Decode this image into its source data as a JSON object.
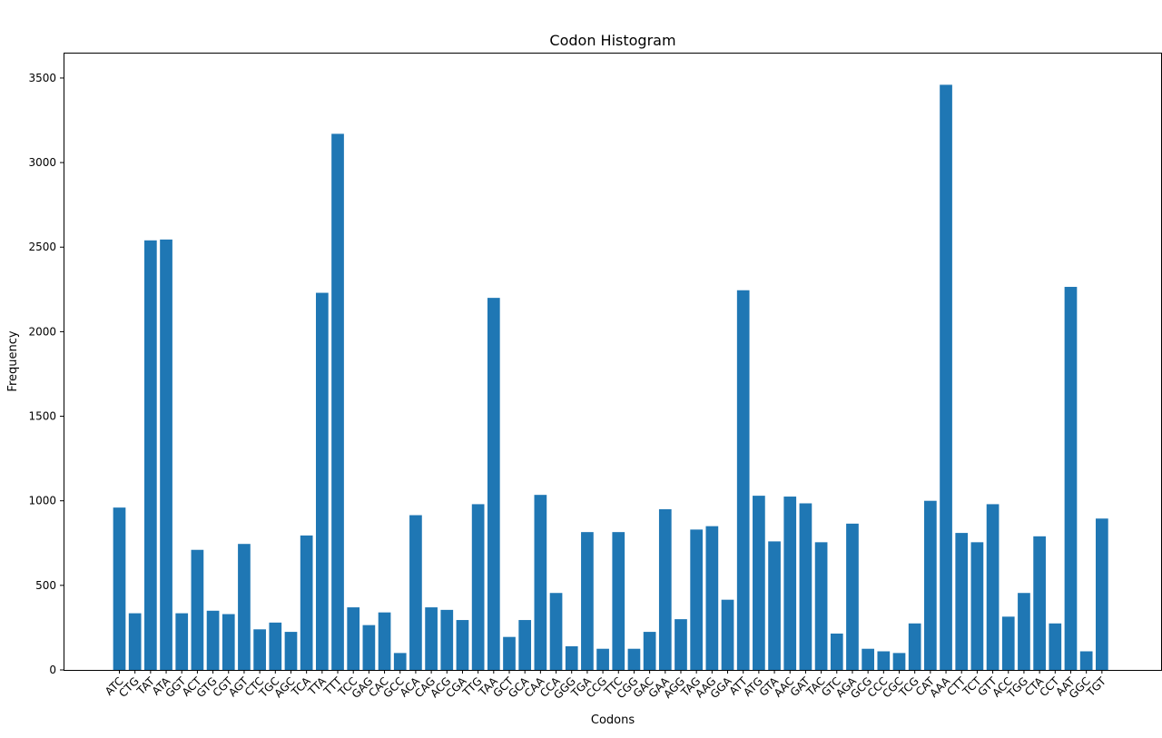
{
  "chart_data": {
    "type": "bar",
    "title": "Codon Histogram",
    "xlabel": "Codons",
    "ylabel": "Frequency",
    "ylim": [
      0,
      3650
    ],
    "yticks": [
      0,
      500,
      1000,
      1500,
      2000,
      2500,
      3000,
      3500
    ],
    "bar_color": "#1f77b4",
    "grid": false,
    "categories": [
      "ATC",
      "CTG",
      "TAT",
      "ATA",
      "GGT",
      "ACT",
      "GTG",
      "CGT",
      "AGT",
      "CTC",
      "TGC",
      "AGC",
      "TCA",
      "TTA",
      "TTT",
      "TCC",
      "GAG",
      "CAC",
      "GCC",
      "ACA",
      "CAG",
      "ACG",
      "CGA",
      "TTG",
      "TAA",
      "GCT",
      "GCA",
      "CAA",
      "CCA",
      "GGG",
      "TGA",
      "CCG",
      "TTC",
      "CGG",
      "GAC",
      "GAA",
      "AGG",
      "TAG",
      "AAG",
      "GGA",
      "ATT",
      "ATG",
      "GTA",
      "AAC",
      "GAT",
      "TAC",
      "GTC",
      "AGA",
      "GCG",
      "CCC",
      "CGC",
      "TCG",
      "CAT",
      "AAA",
      "CTT",
      "TCT",
      "GTT",
      "ACC",
      "TGG",
      "CTA",
      "CCT",
      "AAT",
      "GGC",
      "TGT"
    ],
    "values": [
      960,
      335,
      2540,
      2545,
      335,
      710,
      350,
      330,
      745,
      240,
      280,
      225,
      795,
      2230,
      3170,
      370,
      265,
      340,
      100,
      915,
      370,
      355,
      295,
      980,
      2200,
      195,
      295,
      1035,
      455,
      140,
      815,
      125,
      815,
      125,
      225,
      950,
      300,
      830,
      850,
      415,
      2245,
      1030,
      760,
      1025,
      985,
      755,
      215,
      865,
      125,
      110,
      100,
      275,
      1000,
      3460,
      810,
      755,
      980,
      315,
      455,
      790,
      275,
      2265,
      110,
      895
    ]
  }
}
